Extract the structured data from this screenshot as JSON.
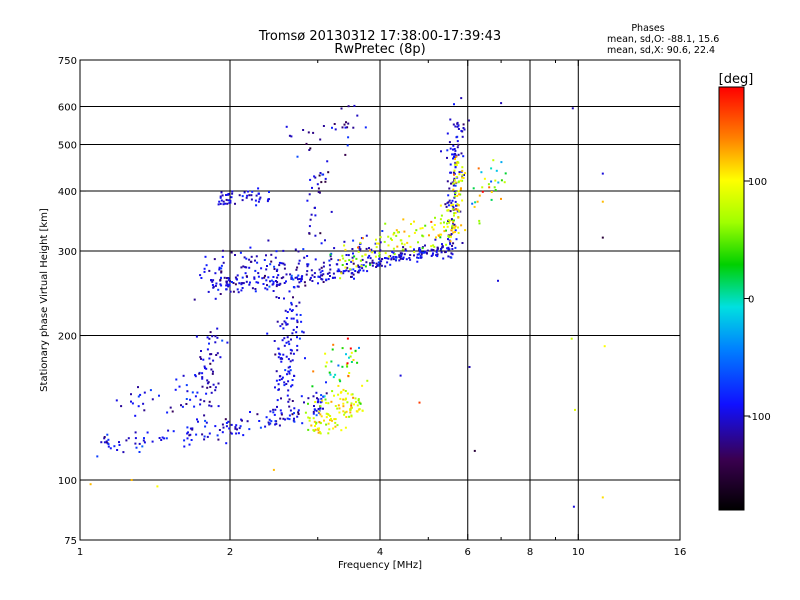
{
  "title_line1": "Tromsø 20130312 17:38:00-17:39:43",
  "title_line2": "RwPretec (8p)",
  "stats": {
    "heading": "Phases",
    "line_o": "mean, sd,O: -88.1, 15.6",
    "line_x": "mean, sd,X:  90.6, 22.4"
  },
  "colorbar": {
    "unit_label": "[deg]",
    "ticks": [
      {
        "value": 100,
        "label": "100"
      },
      {
        "value": 0,
        "label": "0"
      },
      {
        "value": -100,
        "label": "-100"
      }
    ],
    "range": [
      -180,
      180
    ]
  },
  "chart_data": {
    "type": "scatter",
    "xlabel": "Frequency [MHz]",
    "ylabel": "Stationary phase Virtual Height [km]",
    "xscale": "log",
    "yscale": "log",
    "xlim": [
      1,
      16
    ],
    "ylim": [
      75,
      750
    ],
    "x_ticks": [
      {
        "value": 1,
        "label": "1"
      },
      {
        "value": 2,
        "label": "2"
      },
      {
        "value": 4,
        "label": "4"
      },
      {
        "value": 6,
        "label": "6"
      },
      {
        "value": 8,
        "label": "8"
      },
      {
        "value": 10,
        "label": "10"
      },
      {
        "value": 16,
        "label": "16"
      }
    ],
    "x_grid": [
      2,
      4,
      6,
      8,
      10
    ],
    "x_minor": [
      3,
      5,
      7,
      9
    ],
    "y_ticks": [
      {
        "value": 75,
        "label": "75"
      },
      {
        "value": 100,
        "label": "100"
      },
      {
        "value": 200,
        "label": "200"
      },
      {
        "value": 300,
        "label": "300"
      },
      {
        "value": 400,
        "label": "400"
      },
      {
        "value": 500,
        "label": "500"
      },
      {
        "value": 600,
        "label": "600"
      },
      {
        "value": 750,
        "label": "750"
      }
    ],
    "y_grid": [
      100,
      200,
      300,
      400,
      500,
      600
    ],
    "grid": true,
    "point_groups": [
      {
        "name": "E-trace",
        "polyline": [
          [
            1.1,
            119
          ],
          [
            1.25,
            121
          ],
          [
            1.4,
            122
          ],
          [
            1.6,
            124
          ],
          [
            1.8,
            126
          ],
          [
            2.0,
            128
          ],
          [
            2.2,
            130
          ],
          [
            2.4,
            133
          ],
          [
            2.6,
            136
          ],
          [
            2.8,
            139
          ],
          [
            3.0,
            143
          ],
          [
            3.1,
            146
          ]
        ],
        "n": 160,
        "hspread": 0.025,
        "phase_mean": -95,
        "phase_sd": 18
      },
      {
        "name": "E-trace-x",
        "polyline": [
          [
            2.9,
            130
          ],
          [
            3.1,
            134
          ],
          [
            3.3,
            137
          ],
          [
            3.5,
            141
          ],
          [
            3.6,
            146
          ]
        ],
        "n": 110,
        "hspread": 0.045,
        "phase_mean": 95,
        "phase_sd": 20
      },
      {
        "name": "E-spread-1",
        "polyline": [
          [
            1.75,
            135
          ],
          [
            1.8,
            165
          ],
          [
            1.85,
            195
          ]
        ],
        "n": 60,
        "hspread": 0.05,
        "phase_mean": -105,
        "phase_sd": 15
      },
      {
        "name": "E-spread-2",
        "polyline": [
          [
            2.55,
            140
          ],
          [
            2.6,
            180
          ],
          [
            2.65,
            230
          ]
        ],
        "n": 110,
        "hspread": 0.06,
        "phase_mean": -100,
        "phase_sd": 14
      },
      {
        "name": "E-spread-3",
        "polyline": [
          [
            1.25,
            140
          ],
          [
            1.5,
            150
          ],
          [
            1.7,
            160
          ]
        ],
        "n": 35,
        "hspread": 0.06,
        "phase_mean": -95,
        "phase_sd": 20
      },
      {
        "name": "E-spread-4",
        "polyline": [
          [
            3.0,
            160
          ],
          [
            3.3,
            175
          ],
          [
            3.55,
            185
          ]
        ],
        "n": 40,
        "hspread": 0.06,
        "phase_mean": 40,
        "phase_sd": 70
      },
      {
        "name": "F-trace",
        "polyline": [
          [
            1.85,
            255
          ],
          [
            2.2,
            257
          ],
          [
            2.6,
            260
          ],
          [
            3.0,
            265
          ],
          [
            3.5,
            273
          ],
          [
            4.0,
            285
          ],
          [
            4.6,
            295
          ],
          [
            5.0,
            298
          ],
          [
            5.6,
            305
          ]
        ],
        "n": 260,
        "hspread": 0.018,
        "phase_mean": -100,
        "phase_sd": 14
      },
      {
        "name": "F-spread",
        "polyline": [
          [
            1.75,
            265
          ],
          [
            2.2,
            278
          ],
          [
            3.0,
            285
          ],
          [
            4.0,
            300
          ]
        ],
        "n": 170,
        "hspread": 0.045,
        "phase_mean": -105,
        "phase_sd": 16
      },
      {
        "name": "F-x-trace",
        "polyline": [
          [
            3.2,
            290
          ],
          [
            3.8,
            300
          ],
          [
            4.5,
            320
          ],
          [
            5.2,
            330
          ],
          [
            5.6,
            340
          ]
        ],
        "n": 110,
        "hspread": 0.04,
        "phase_mean": 85,
        "phase_sd": 25
      },
      {
        "name": "F-cusp-o",
        "polyline": [
          [
            5.55,
            300
          ],
          [
            5.6,
            380
          ],
          [
            5.65,
            470
          ],
          [
            5.7,
            570
          ]
        ],
        "n": 110,
        "hspread": 0.035,
        "phase_mean": -100,
        "phase_sd": 15
      },
      {
        "name": "F-cusp-x",
        "polyline": [
          [
            5.6,
            320
          ],
          [
            5.7,
            380
          ],
          [
            5.75,
            450
          ]
        ],
        "n": 70,
        "hspread": 0.03,
        "phase_mean": 95,
        "phase_sd": 20
      },
      {
        "name": "F-upper-1",
        "polyline": [
          [
            1.9,
            385
          ],
          [
            2.1,
            388
          ],
          [
            2.4,
            392
          ]
        ],
        "n": 50,
        "hspread": 0.02,
        "phase_mean": -100,
        "phase_sd": 10
      },
      {
        "name": "F-upper-2",
        "polyline": [
          [
            2.9,
            330
          ],
          [
            3.0,
            420
          ],
          [
            3.1,
            440
          ]
        ],
        "n": 30,
        "hspread": 0.04,
        "phase_mean": -110,
        "phase_sd": 20
      },
      {
        "name": "F-high",
        "polyline": [
          [
            2.6,
            505
          ],
          [
            3.2,
            530
          ],
          [
            3.6,
            550
          ]
        ],
        "n": 30,
        "hspread": 0.04,
        "phase_mean": -105,
        "phase_sd": 20
      },
      {
        "name": "F-right",
        "polyline": [
          [
            6.3,
            360
          ],
          [
            6.6,
            400
          ],
          [
            6.9,
            450
          ]
        ],
        "n": 30,
        "hspread": 0.05,
        "phase_mean": 60,
        "phase_sd": 60
      }
    ],
    "isolated_points": [
      [
        1.05,
        98,
        120
      ],
      [
        1.27,
        100,
        120
      ],
      [
        1.43,
        97,
        100
      ],
      [
        2.45,
        105,
        120
      ],
      [
        4.4,
        165,
        -100
      ],
      [
        4.8,
        145,
        160
      ],
      [
        6.05,
        172,
        -110
      ],
      [
        6.2,
        115,
        -150
      ],
      [
        6.9,
        260,
        -100
      ],
      [
        7.0,
        610,
        -110
      ],
      [
        9.75,
        595,
        -110
      ],
      [
        9.7,
        197,
        80
      ],
      [
        9.8,
        88,
        -100
      ],
      [
        9.85,
        140,
        90
      ],
      [
        11.2,
        435,
        -100
      ],
      [
        11.2,
        320,
        -150
      ],
      [
        11.2,
        380,
        120
      ],
      [
        11.3,
        190,
        100
      ],
      [
        11.2,
        92,
        110
      ]
    ]
  }
}
